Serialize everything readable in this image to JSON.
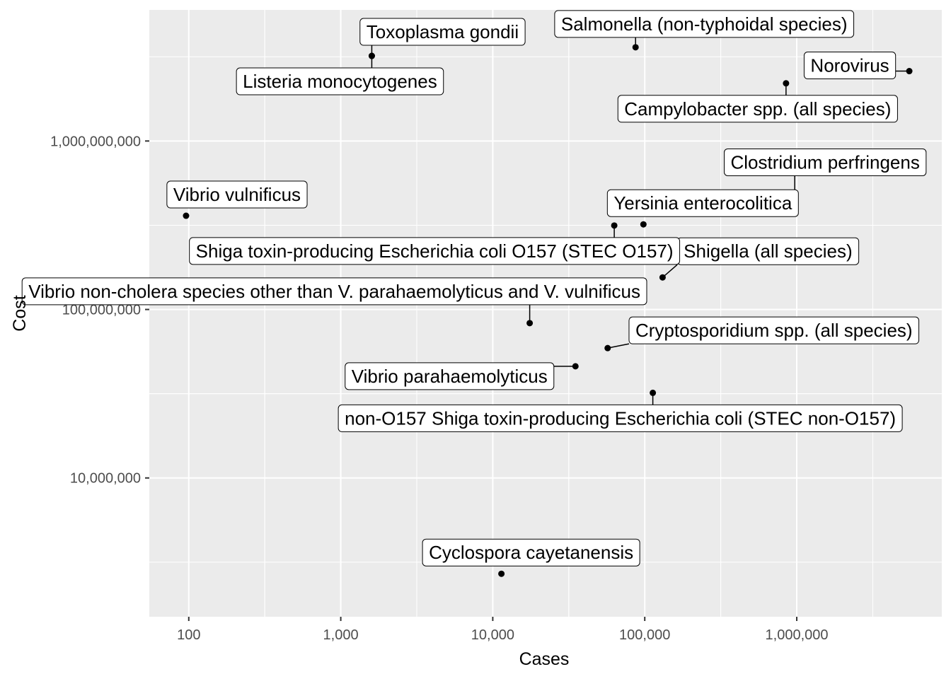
{
  "chart_data": {
    "type": "scatter",
    "title": "",
    "xlabel": "Cases",
    "ylabel": "Cost",
    "x_scale": "log10",
    "y_scale": "log10",
    "xlim": [
      55,
      9000000
    ],
    "ylim": [
      1500000,
      6000000000
    ],
    "x_ticks": [
      100,
      1000,
      10000,
      100000,
      1000000
    ],
    "x_tick_labels": [
      "100",
      "1,000",
      "10,000",
      "100,000",
      "1,000,000"
    ],
    "y_ticks": [
      10000000,
      100000000,
      1000000000
    ],
    "y_tick_labels": [
      "10,000,000",
      "100,000,000",
      "1,000,000,000"
    ],
    "grid": true,
    "legend": "none",
    "colors": {
      "panel": "#ebebeb",
      "grid": "#ffffff",
      "point": "#000000",
      "label_border": "#000000",
      "label_fill": "#ffffff"
    },
    "points": [
      {
        "label": "Toxoplasma gondii",
        "x": 1600,
        "y": 3200000000
      },
      {
        "label": "Salmonella (non-typhoidal species)",
        "x": 87000,
        "y": 3600000000
      },
      {
        "label": "Listeria monocytogenes",
        "x": 1600,
        "y": 3200000000
      },
      {
        "label": "Norovirus",
        "x": 5500000,
        "y": 2600000000
      },
      {
        "label": "Campylobacter spp. (all species)",
        "x": 850000,
        "y": 2200000000
      },
      {
        "label": "Clostridium perfringens",
        "x": 970000,
        "y": 380000000
      },
      {
        "label": "Vibrio vulnificus",
        "x": 96,
        "y": 360000000
      },
      {
        "label": "Yersinia enterocolitica",
        "x": 98000,
        "y": 320000000
      },
      {
        "label": "Shigella (all species)",
        "x": 131000,
        "y": 155000000
      },
      {
        "label": "Shiga toxin-producing Escherichia coli O157 (STEC O157)",
        "x": 63000,
        "y": 315000000
      },
      {
        "label": "Vibrio non-cholera species other than V. parahaemolyticus and V. vulnificus",
        "x": 17500,
        "y": 83000000
      },
      {
        "label": "Cryptosporidium spp. (all species)",
        "x": 57000,
        "y": 59000000
      },
      {
        "label": "Vibrio parahaemolyticus",
        "x": 35000,
        "y": 46000000
      },
      {
        "label": "non-O157 Shiga toxin-producing Escherichia coli (STEC non-O157)",
        "x": 113000,
        "y": 32000000
      },
      {
        "label": "Cyclospora cayetanensis",
        "x": 11400,
        "y": 2700000
      }
    ]
  }
}
